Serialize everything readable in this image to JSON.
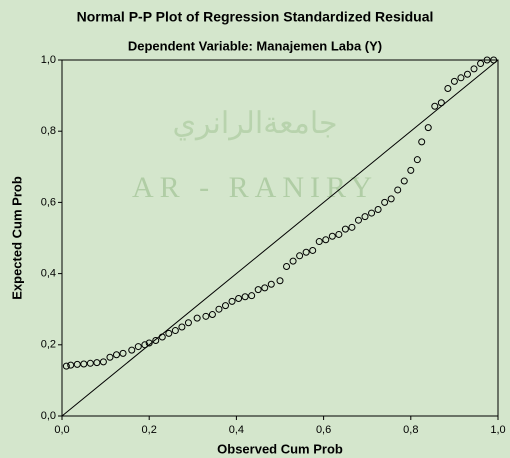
{
  "chart_data": {
    "type": "scatter",
    "title": "Normal P-P Plot of Regression Standardized Residual",
    "subtitle": "Dependent Variable: Manajemen Laba (Y)",
    "x_label": "Observed Cum Prob",
    "y_label": "Expected Cum Prob",
    "watermark": [
      "جامعةالرانري",
      "AR - RANIRY"
    ],
    "x": [
      0.01,
      0.02,
      0.035,
      0.05,
      0.065,
      0.08,
      0.095,
      0.11,
      0.125,
      0.14,
      0.16,
      0.175,
      0.19,
      0.2,
      0.215,
      0.23,
      0.245,
      0.26,
      0.275,
      0.29,
      0.31,
      0.33,
      0.345,
      0.36,
      0.375,
      0.39,
      0.405,
      0.42,
      0.435,
      0.45,
      0.465,
      0.48,
      0.5,
      0.515,
      0.53,
      0.545,
      0.56,
      0.575,
      0.59,
      0.605,
      0.62,
      0.635,
      0.65,
      0.665,
      0.68,
      0.695,
      0.71,
      0.725,
      0.74,
      0.755,
      0.77,
      0.785,
      0.8,
      0.815,
      0.825,
      0.84,
      0.855,
      0.87,
      0.885,
      0.9,
      0.915,
      0.93,
      0.945,
      0.96,
      0.975,
      0.99
    ],
    "values": [
      0.14,
      0.143,
      0.145,
      0.146,
      0.148,
      0.15,
      0.152,
      0.165,
      0.172,
      0.176,
      0.185,
      0.195,
      0.2,
      0.205,
      0.212,
      0.222,
      0.232,
      0.24,
      0.25,
      0.262,
      0.275,
      0.28,
      0.285,
      0.3,
      0.31,
      0.322,
      0.33,
      0.335,
      0.338,
      0.355,
      0.36,
      0.37,
      0.38,
      0.42,
      0.435,
      0.45,
      0.46,
      0.465,
      0.49,
      0.495,
      0.505,
      0.51,
      0.525,
      0.53,
      0.55,
      0.56,
      0.57,
      0.58,
      0.6,
      0.61,
      0.635,
      0.66,
      0.69,
      0.72,
      0.77,
      0.81,
      0.87,
      0.88,
      0.92,
      0.94,
      0.95,
      0.96,
      0.975,
      0.99,
      1.0,
      1.0
    ],
    "color": "#000000",
    "xlim": [
      0,
      1
    ],
    "ylim": [
      0,
      1
    ],
    "xticks": [
      {
        "value": 0,
        "label": "0,0"
      },
      {
        "value": 0.2,
        "label": "0,2"
      },
      {
        "value": 0.4,
        "label": "0,4"
      },
      {
        "value": 0.6,
        "label": "0,6"
      },
      {
        "value": 0.8,
        "label": "0,8"
      },
      {
        "value": 1,
        "label": "1,0"
      }
    ],
    "yticks": [
      {
        "value": 0,
        "label": "0,0"
      },
      {
        "value": 0.2,
        "label": "0,2"
      },
      {
        "value": 0.4,
        "label": "0,4"
      },
      {
        "value": 0.6,
        "label": "0,6"
      },
      {
        "value": 0.8,
        "label": "0,8"
      },
      {
        "value": 1,
        "label": "1,0"
      }
    ],
    "reference_line": true
  }
}
